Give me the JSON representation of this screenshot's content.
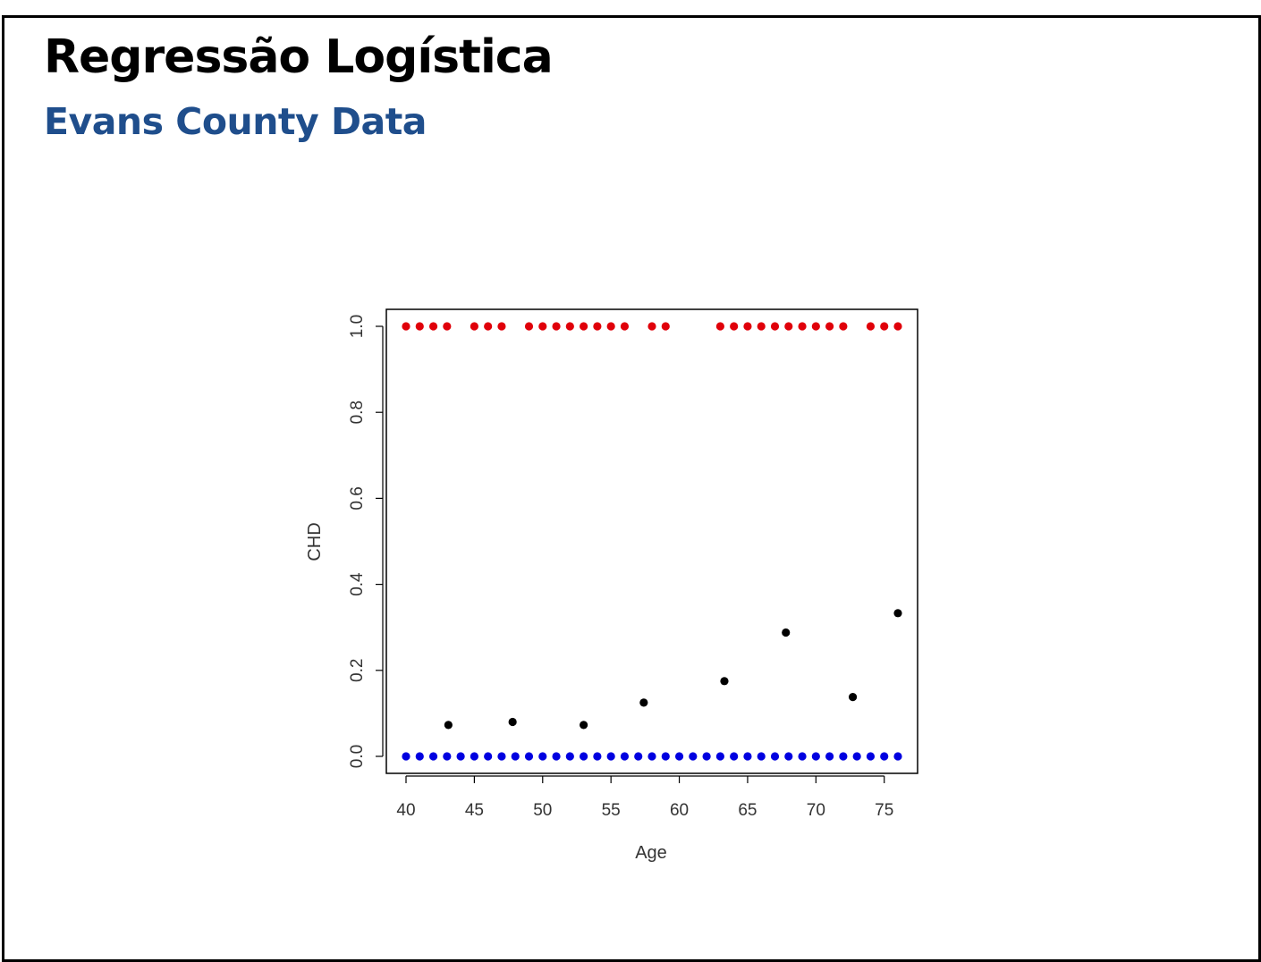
{
  "slide": {
    "title": "Regressão Logística",
    "subtitle": "Evans County Data"
  },
  "colors": {
    "subtitle": "#1f4e8c",
    "chd_1": "#e0000a",
    "chd_0": "#0000e0",
    "proportion": "#000000"
  },
  "chart_data": {
    "type": "scatter",
    "xlabel": "Age",
    "ylabel": "CHD",
    "xlim": [
      40,
      76
    ],
    "ylim": [
      0,
      1
    ],
    "x_ticks": [
      "40",
      "45",
      "50",
      "55",
      "60",
      "65",
      "70",
      "75"
    ],
    "y_ticks": [
      "0.0",
      "0.2",
      "0.4",
      "0.6",
      "0.8",
      "1.0"
    ],
    "grid": false,
    "legend": "none",
    "series": [
      {
        "color_key": "chd_1",
        "x": [
          40,
          41,
          42,
          43,
          45,
          46,
          47,
          49,
          50,
          51,
          52,
          53,
          54,
          55,
          56,
          58,
          59,
          63,
          64,
          65,
          66,
          67,
          68,
          69,
          70,
          71,
          72,
          74,
          75,
          76
        ],
        "y": [
          1,
          1,
          1,
          1,
          1,
          1,
          1,
          1,
          1,
          1,
          1,
          1,
          1,
          1,
          1,
          1,
          1,
          1,
          1,
          1,
          1,
          1,
          1,
          1,
          1,
          1,
          1,
          1,
          1,
          1
        ]
      },
      {
        "color_key": "chd_0",
        "x": [
          40,
          41,
          42,
          43,
          44,
          45,
          46,
          47,
          48,
          49,
          50,
          51,
          52,
          53,
          54,
          55,
          56,
          57,
          58,
          59,
          60,
          61,
          62,
          63,
          64,
          65,
          66,
          67,
          68,
          69,
          70,
          71,
          72,
          73,
          74,
          75,
          76
        ],
        "y": [
          0,
          0,
          0,
          0,
          0,
          0,
          0,
          0,
          0,
          0,
          0,
          0,
          0,
          0,
          0,
          0,
          0,
          0,
          0,
          0,
          0,
          0,
          0,
          0,
          0,
          0,
          0,
          0,
          0,
          0,
          0,
          0,
          0,
          0,
          0,
          0,
          0
        ]
      },
      {
        "color_key": "proportion",
        "x": [
          43.1,
          47.8,
          53.0,
          57.4,
          63.3,
          67.8,
          72.7,
          76.0
        ],
        "y": [
          0.073,
          0.08,
          0.073,
          0.125,
          0.175,
          0.288,
          0.138,
          0.333
        ]
      }
    ]
  }
}
